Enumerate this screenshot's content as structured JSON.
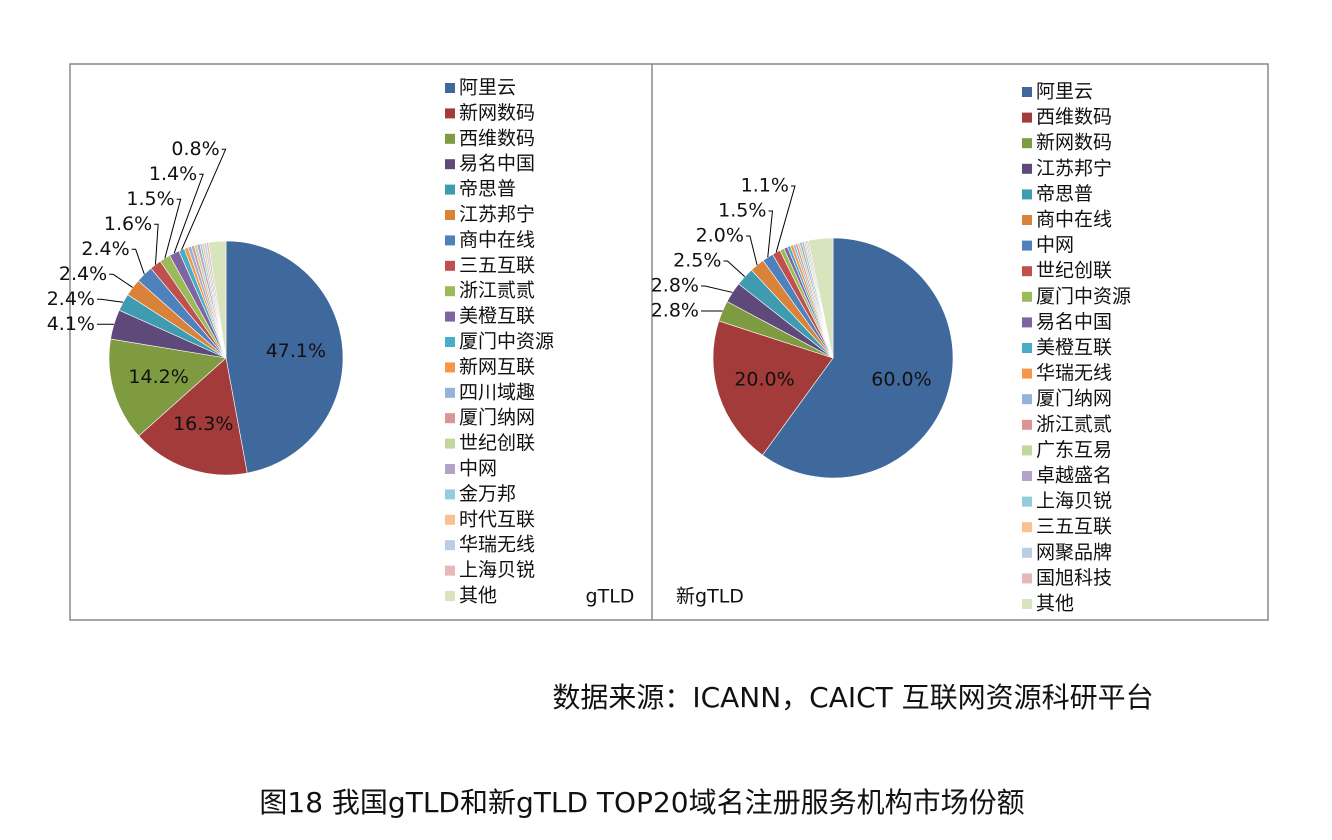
{
  "chart_data": [
    {
      "type": "pie",
      "name": "gTLD",
      "categories": [
        "阿里云",
        "新网数码",
        "西维数码",
        "易名中国",
        "帝思普",
        "江苏邦宁",
        "商中在线",
        "三五互联",
        "浙江贰贰",
        "美橙互联",
        "厦门中资源",
        "新网互联",
        "四川域趣",
        "厦门纳网",
        "世纪创联",
        "中网",
        "金万邦",
        "时代互联",
        "华瑞无线",
        "上海贝锐",
        "其他"
      ],
      "values": [
        47.1,
        16.3,
        14.2,
        4.1,
        2.4,
        2.4,
        2.4,
        1.6,
        1.5,
        1.4,
        0.8,
        0.5,
        0.5,
        0.4,
        0.4,
        0.4,
        0.3,
        0.3,
        0.3,
        0.3,
        2.4
      ],
      "value_labels": [
        "47.1%",
        "16.3%",
        "14.2%",
        "4.1%",
        "2.4%",
        "2.4%",
        "2.4%",
        "1.6%",
        "1.5%",
        "1.4%",
        "0.8%",
        null,
        null,
        null,
        null,
        null,
        null,
        null,
        null,
        null,
        null
      ],
      "colors": [
        "#3F689C",
        "#A33B3A",
        "#7E9B42",
        "#5F497A",
        "#3E9BB0",
        "#D9823A",
        "#4F81BD",
        "#C0504D",
        "#9BBB59",
        "#8064A2",
        "#4BACC6",
        "#F79646",
        "#95B3D7",
        "#D99694",
        "#C3D69B",
        "#B3A2C7",
        "#93CDDD",
        "#FAC090",
        "#B9CDE5",
        "#E6B9B8",
        "#D7E4BD"
      ]
    },
    {
      "type": "pie",
      "name": "新gTLD",
      "categories": [
        "阿里云",
        "西维数码",
        "新网数码",
        "江苏邦宁",
        "帝思普",
        "商中在线",
        "中网",
        "世纪创联",
        "厦门中资源",
        "易名中国",
        "美橙互联",
        "华瑞无线",
        "厦门纳网",
        "浙江贰贰",
        "广东互易",
        "卓越盛名",
        "上海贝锐",
        "三五互联",
        "网聚品牌",
        "国旭科技",
        "其他"
      ],
      "values": [
        60.0,
        20.0,
        2.8,
        2.8,
        2.5,
        2.0,
        1.5,
        1.1,
        0.6,
        0.5,
        0.4,
        0.4,
        0.3,
        0.3,
        0.3,
        0.3,
        0.3,
        0.2,
        0.2,
        0.2,
        3.3
      ],
      "value_labels": [
        "60.0%",
        "20.0%",
        "2.8%",
        "2.8%",
        "2.5%",
        "2.0%",
        "1.5%",
        "1.1%",
        null,
        null,
        null,
        null,
        null,
        null,
        null,
        null,
        null,
        null,
        null,
        null,
        null
      ],
      "colors": [
        "#3F689C",
        "#A33B3A",
        "#7E9B42",
        "#5F497A",
        "#3E9BB0",
        "#D9823A",
        "#4F81BD",
        "#C0504D",
        "#9BBB59",
        "#8064A2",
        "#4BACC6",
        "#F79646",
        "#95B3D7",
        "#D99694",
        "#C3D69B",
        "#B3A2C7",
        "#93CDDD",
        "#FAC090",
        "#B9CDE5",
        "#E6B9B8",
        "#D7E4BD"
      ]
    }
  ],
  "source": "数据来源：ICANN，CAICT 互联网资源科研平台",
  "caption": "图18 我国gTLD和新gTLD TOP20域名注册服务机构市场份额"
}
